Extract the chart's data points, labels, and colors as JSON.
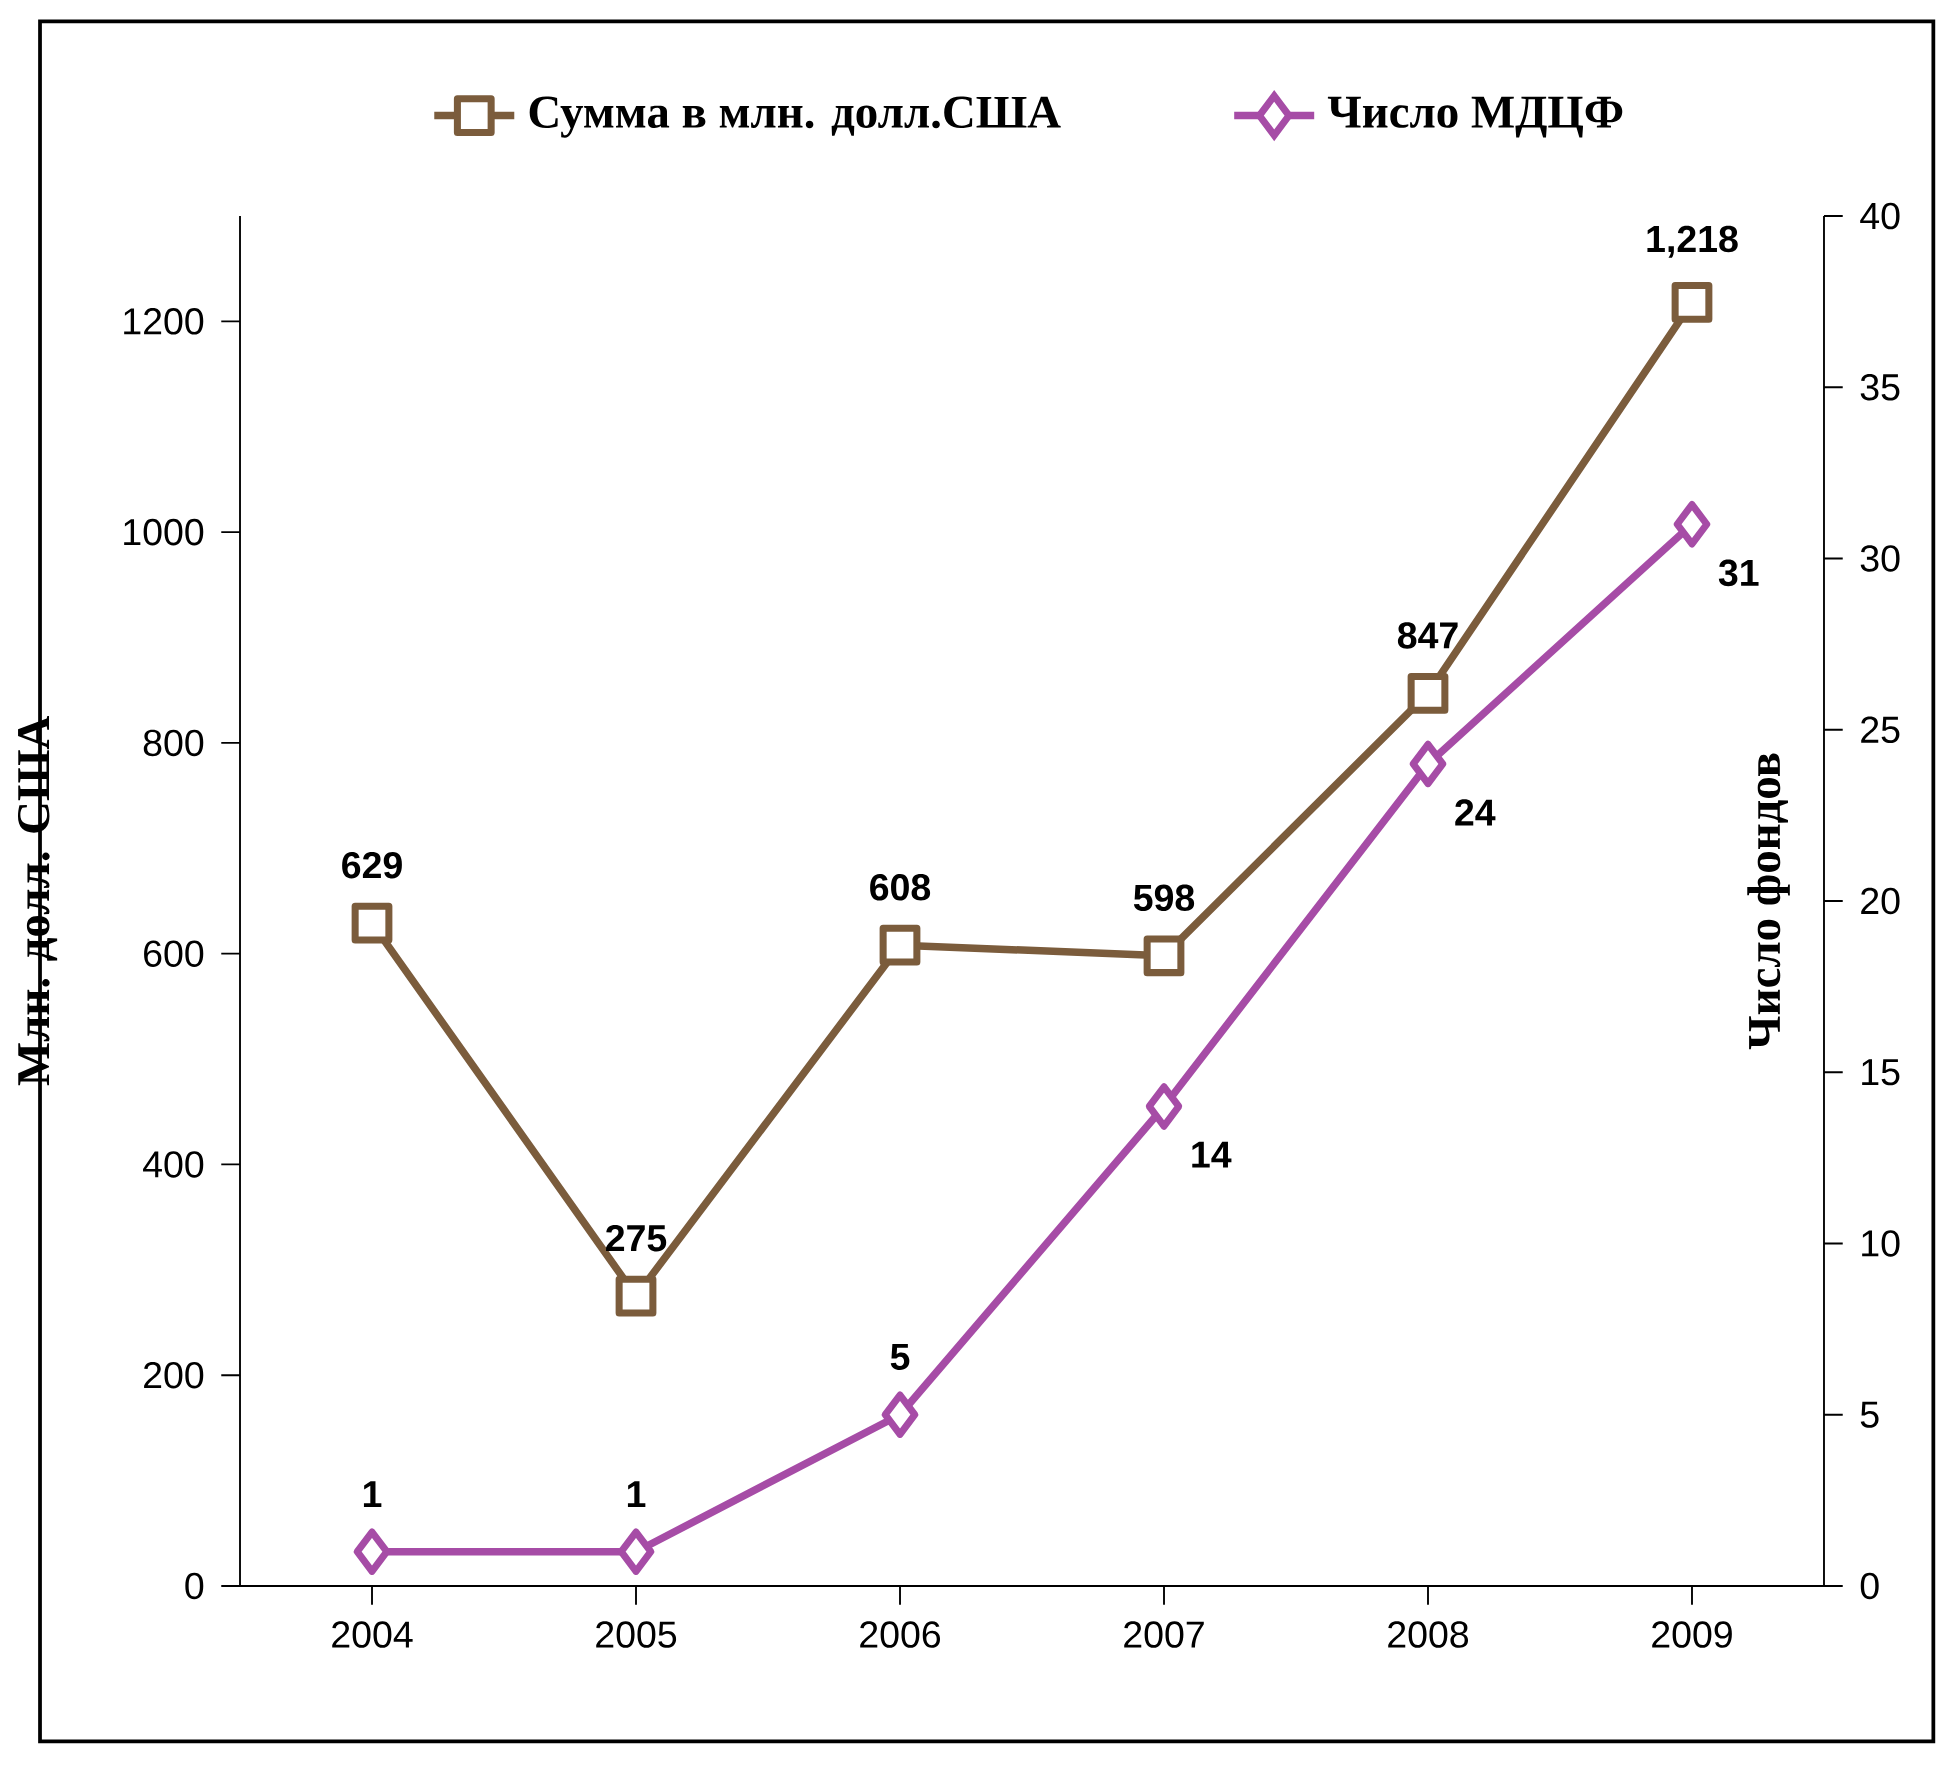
{
  "chart_data": {
    "type": "line",
    "ylabel": "Млн. долл. США",
    "y2label": "Число фондов",
    "categories": [
      "2004",
      "2005",
      "2006",
      "2007",
      "2008",
      "2009"
    ],
    "series": [
      {
        "name": "Сумма в млн. долл.США",
        "color": "#7b5c3c",
        "marker": "square",
        "values": [
          629,
          275,
          608,
          598,
          847,
          1218
        ],
        "value_labels": [
          "629",
          "275",
          "608",
          "598",
          "847",
          "1,218"
        ]
      },
      {
        "name": "Число МДЦФ",
        "color": "#a64ca6",
        "marker": "diamond",
        "axis": "y2",
        "values": [
          1,
          1,
          5,
          14,
          24,
          31
        ],
        "value_labels": [
          "1",
          "1",
          "5",
          "14",
          "24",
          "31"
        ]
      }
    ],
    "ylim": [
      0,
      1300
    ],
    "yticks": [
      0,
      200,
      400,
      600,
      800,
      1000,
      1200
    ],
    "y2lim": [
      0,
      40
    ],
    "y2ticks": [
      0,
      5,
      10,
      15,
      20,
      25,
      30,
      35,
      40
    ],
    "legend": "top",
    "grid": false,
    "line_style": "solid"
  }
}
